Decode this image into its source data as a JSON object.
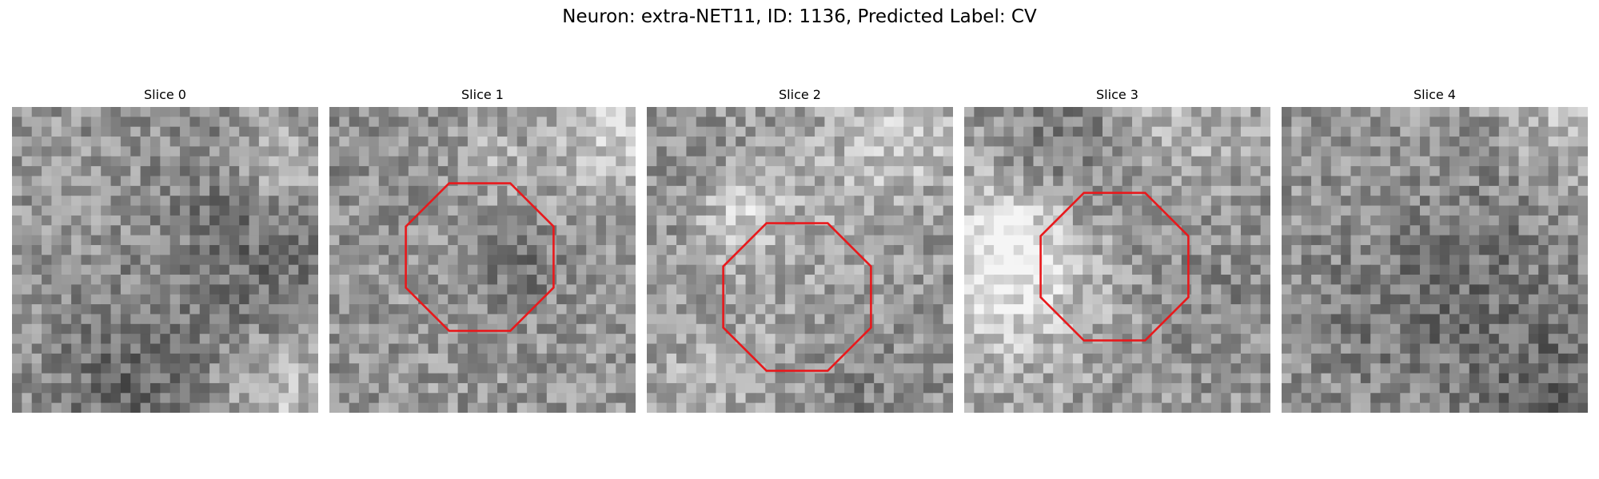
{
  "figure": {
    "title": "Neuron: extra-NET11, ID: 1136, Predicted Label: CV"
  },
  "panels": [
    {
      "title": "Slice 0",
      "roi": false,
      "seed": 11
    },
    {
      "title": "Slice 1",
      "roi": true,
      "seed": 23
    },
    {
      "title": "Slice 2",
      "roi": true,
      "seed": 37
    },
    {
      "title": "Slice 3",
      "roi": true,
      "seed": 51
    },
    {
      "title": "Slice 4",
      "roi": false,
      "seed": 73
    }
  ],
  "colors": {
    "roi_outline": "#e8191c"
  },
  "icons": {
    "roi_shape": "octagon-outline"
  }
}
